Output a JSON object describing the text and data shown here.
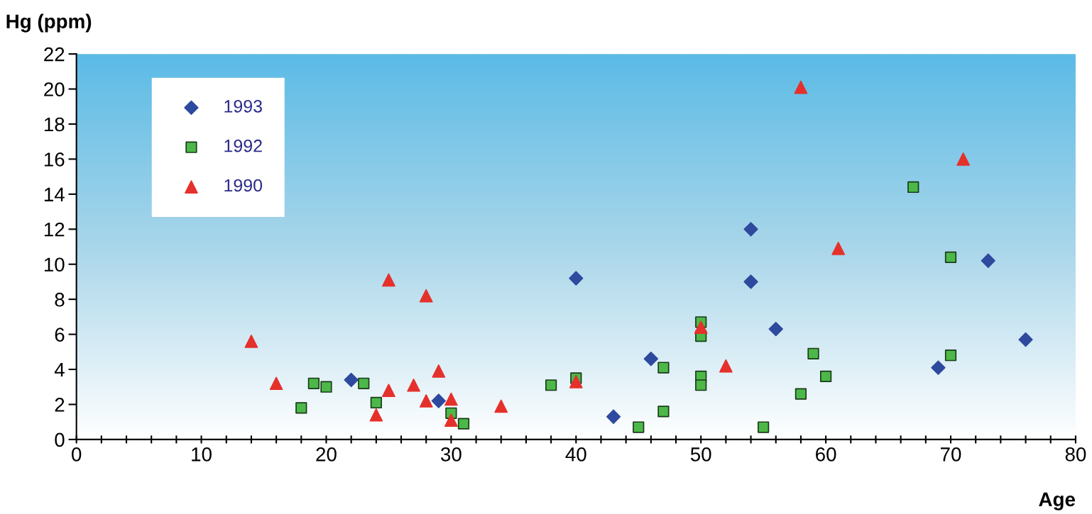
{
  "chart_data": {
    "type": "scatter",
    "xlabel": "Age",
    "ylabel": "Hg (ppm)",
    "xlim": [
      0,
      80
    ],
    "ylim": [
      0,
      22
    ],
    "xticks": [
      0,
      {
        "value": 2,
        "label": null
      },
      {
        "value": 4,
        "label": null
      },
      {
        "value": 6,
        "label": null
      },
      {
        "value": 8,
        "label": null
      },
      10,
      {
        "value": 12,
        "label": null
      },
      {
        "value": 14,
        "label": null
      },
      {
        "value": 16,
        "label": null
      },
      {
        "value": 18,
        "label": null
      },
      20,
      {
        "value": 22,
        "label": null
      },
      {
        "value": 24,
        "label": null
      },
      {
        "value": 26,
        "label": null
      },
      {
        "value": 28,
        "label": null
      },
      30,
      {
        "value": 32,
        "label": null
      },
      {
        "value": 34,
        "label": null
      },
      {
        "value": 36,
        "label": null
      },
      {
        "value": 38,
        "label": null
      },
      40,
      {
        "value": 42,
        "label": null
      },
      {
        "value": 44,
        "label": null
      },
      {
        "value": 46,
        "label": null
      },
      {
        "value": 48,
        "label": null
      },
      50,
      {
        "value": 52,
        "label": null
      },
      {
        "value": 54,
        "label": null
      },
      {
        "value": 56,
        "label": null
      },
      {
        "value": 58,
        "label": null
      },
      60,
      {
        "value": 62,
        "label": null
      },
      {
        "value": 64,
        "label": null
      },
      {
        "value": 66,
        "label": null
      },
      {
        "value": 68,
        "label": null
      },
      70,
      {
        "value": 72,
        "label": null
      },
      {
        "value": 74,
        "label": null
      },
      {
        "value": 76,
        "label": null
      },
      {
        "value": 78,
        "label": null
      },
      80
    ],
    "yticks": [
      0,
      2,
      4,
      6,
      8,
      10,
      12,
      14,
      16,
      18,
      20,
      22
    ],
    "grid": false,
    "legend": "top left",
    "series": [
      {
        "name": "1993",
        "color": "#2e4a9e",
        "marker": "diamond",
        "x": [
          22,
          29,
          40,
          43,
          46,
          54,
          54,
          56,
          69,
          73,
          76
        ],
        "values": [
          3.4,
          2.2,
          9.2,
          1.3,
          4.6,
          12.0,
          9.0,
          6.3,
          4.1,
          10.2,
          5.7
        ]
      },
      {
        "name": "1992",
        "color": "#4cb848",
        "marker": "square",
        "x": [
          18,
          19,
          20,
          23,
          24,
          30,
          31,
          38,
          40,
          45,
          47,
          47,
          50,
          50,
          50,
          50,
          55,
          58,
          59,
          60,
          67,
          70,
          70
        ],
        "values": [
          1.8,
          3.2,
          3.0,
          3.2,
          2.1,
          1.5,
          0.9,
          3.1,
          3.5,
          0.7,
          4.1,
          1.6,
          6.7,
          5.9,
          3.6,
          3.1,
          0.7,
          2.6,
          4.9,
          3.6,
          14.4,
          10.4,
          4.8
        ]
      },
      {
        "name": "1990",
        "color": "#e5312b",
        "marker": "triangle",
        "x": [
          14,
          16,
          24,
          25,
          25,
          27,
          28,
          28,
          29,
          30,
          30,
          34,
          40,
          50,
          52,
          58,
          61,
          71
        ],
        "values": [
          5.6,
          3.2,
          1.4,
          9.1,
          2.8,
          3.1,
          8.2,
          2.2,
          3.9,
          2.3,
          1.1,
          1.9,
          3.3,
          6.4,
          4.2,
          20.1,
          10.9,
          16.0
        ]
      }
    ]
  }
}
